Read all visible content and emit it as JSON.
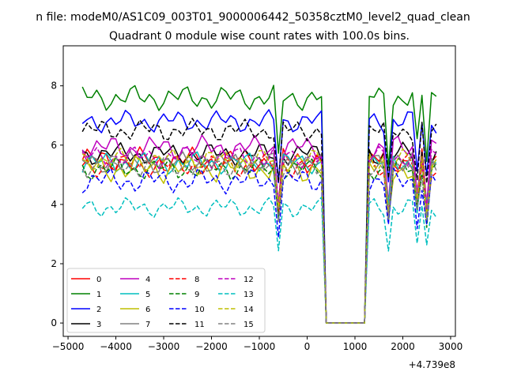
{
  "chart_data": {
    "type": "line",
    "suptitle": "n file: modeM0/AS1C09_003T01_9000006442_50358cztM0_level2_quad_clean",
    "title": "Quadrant 0 module wise count rates with 100.0s bins.",
    "xlabel": "",
    "ylabel": "",
    "x_offset_label": "+4.739e8",
    "xlim": [
      -5100,
      3100
    ],
    "ylim": [
      -0.45,
      9.35
    ],
    "xticks": [
      -5000,
      -4000,
      -3000,
      -2000,
      -1000,
      0,
      1000,
      2000,
      3000
    ],
    "yticks": [
      0,
      2,
      4,
      6,
      8
    ],
    "x": [
      -4700,
      -4600,
      -4500,
      -4400,
      -4300,
      -4200,
      -4100,
      -4000,
      -3900,
      -3800,
      -3700,
      -3600,
      -3500,
      -3400,
      -3300,
      -3200,
      -3100,
      -3000,
      -2900,
      -2800,
      -2700,
      -2600,
      -2500,
      -2400,
      -2300,
      -2200,
      -2100,
      -2000,
      -1900,
      -1800,
      -1700,
      -1600,
      -1500,
      -1400,
      -1300,
      -1200,
      -1100,
      -1000,
      -900,
      -800,
      -700,
      -600,
      -500,
      -400,
      -300,
      -200,
      -100,
      0,
      100,
      200,
      300,
      400,
      500,
      600,
      700,
      800,
      900,
      1000,
      1100,
      1200,
      1300,
      1400,
      1500,
      1600,
      1700,
      1800,
      1900,
      2000,
      2100,
      2200,
      2300,
      2400,
      2500,
      2600,
      2700
    ],
    "gap_profile": [
      1,
      1,
      1,
      1,
      1,
      1,
      1,
      1,
      1,
      1,
      1,
      1,
      1,
      1,
      1,
      1,
      1,
      1,
      1,
      1,
      1,
      1,
      1,
      1,
      1,
      1,
      1,
      1,
      1,
      1,
      1,
      1,
      1,
      1,
      1,
      1,
      1,
      1,
      1,
      1,
      1,
      0.82,
      1,
      1,
      1,
      1,
      1,
      1,
      1,
      1,
      1,
      0,
      0,
      0,
      0,
      0,
      0,
      0,
      0,
      0,
      1,
      1,
      1,
      1,
      0.82,
      1,
      1,
      1,
      1,
      1,
      0.85,
      1,
      0.82,
      1,
      1
    ],
    "series": [
      {
        "name": "0",
        "color": "#ff0000",
        "dash": "solid",
        "level": 5.5,
        "amp": 0.45
      },
      {
        "name": "1",
        "color": "#008000",
        "dash": "solid",
        "level": 7.6,
        "amp": 0.45
      },
      {
        "name": "2",
        "color": "#0000ff",
        "dash": "solid",
        "level": 6.8,
        "amp": 0.4
      },
      {
        "name": "3",
        "color": "#000000",
        "dash": "solid",
        "level": 5.7,
        "amp": 0.4
      },
      {
        "name": "4",
        "color": "#bf00bf",
        "dash": "solid",
        "level": 5.9,
        "amp": 0.45
      },
      {
        "name": "5",
        "color": "#00bfbf",
        "dash": "solid",
        "level": 5.4,
        "amp": 0.4
      },
      {
        "name": "6",
        "color": "#bfbf00",
        "dash": "solid",
        "level": 5.2,
        "amp": 0.5
      },
      {
        "name": "7",
        "color": "#808080",
        "dash": "solid",
        "level": 5.4,
        "amp": 0.4
      },
      {
        "name": "8",
        "color": "#ff0000",
        "dash": "dashed",
        "level": 5.3,
        "amp": 0.4
      },
      {
        "name": "9",
        "color": "#008000",
        "dash": "dashed",
        "level": 5.2,
        "amp": 0.4
      },
      {
        "name": "10",
        "color": "#0000ff",
        "dash": "dashed",
        "level": 4.8,
        "amp": 0.45
      },
      {
        "name": "11",
        "color": "#000000",
        "dash": "dashed",
        "level": 6.5,
        "amp": 0.4
      },
      {
        "name": "12",
        "color": "#bf00bf",
        "dash": "dashed",
        "level": 5.6,
        "amp": 0.4
      },
      {
        "name": "13",
        "color": "#00bfbf",
        "dash": "dashed",
        "level": 3.9,
        "amp": 0.35
      },
      {
        "name": "14",
        "color": "#bfbf00",
        "dash": "dashed",
        "level": 5.5,
        "amp": 0.4
      },
      {
        "name": "15",
        "color": "#808080",
        "dash": "dashed",
        "level": 5.3,
        "amp": 0.4
      }
    ],
    "legend_position": "lower-left",
    "legend_columns": 4
  }
}
